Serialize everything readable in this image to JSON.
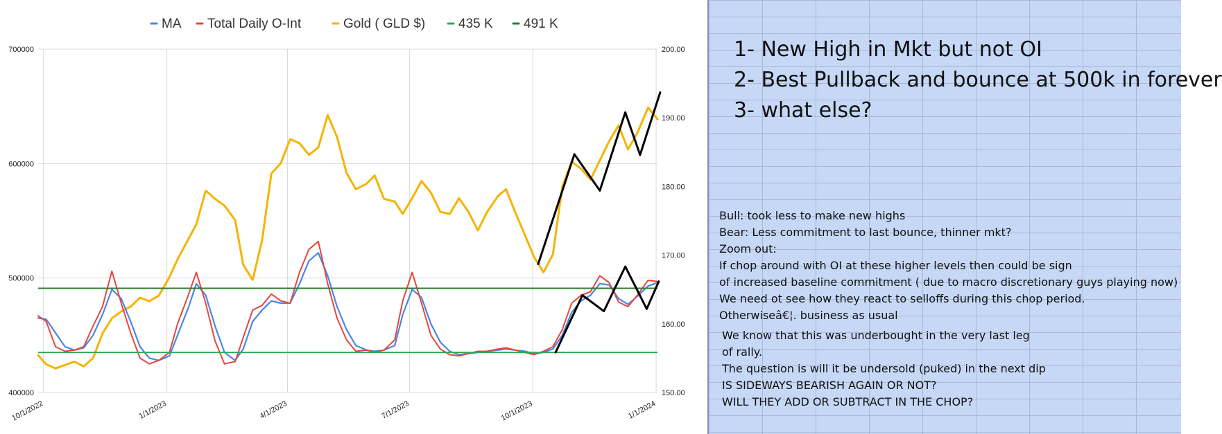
{
  "chart_data": {
    "type": "line",
    "legend": [
      {
        "name": "MA",
        "color": "#4a86e8"
      },
      {
        "name": "Total Daily O-Int",
        "color": "#e8453c"
      },
      {
        "name": "Gold ( GLD $)",
        "color": "#f5b400"
      },
      {
        "name": "435 K",
        "color": "#34a853"
      },
      {
        "name": "491 K",
        "color": "#2e7d32"
      }
    ],
    "legend_position": "top",
    "left_axis": {
      "min": 400000,
      "max": 700000,
      "ticks": [
        "400000",
        "500000",
        "600000",
        "700000"
      ]
    },
    "right_axis": {
      "min": 150,
      "max": 200,
      "ticks": [
        "150.00",
        "160.00",
        "170.00",
        "180.00",
        "190.00",
        "200.00"
      ]
    },
    "x_ticks": [
      "10/1/2022",
      "1/1/2023",
      "4/1/2023",
      "7/1/2023",
      "10/1/2023",
      "1/1/2024"
    ],
    "x_range": [
      "2022-09-27",
      "2024-01-02"
    ],
    "grid": true,
    "hlines": [
      {
        "label": "435 K",
        "value": 435000,
        "color": "#34a853"
      },
      {
        "label": "491 K",
        "value": 491000,
        "color": "#2e7d32"
      }
    ],
    "series": [
      {
        "name": "Gold ( GLD $)",
        "axis": "right",
        "color": "#f5b400",
        "x": [
          "2022-09-27",
          "2022-10-03",
          "2022-10-10",
          "2022-10-17",
          "2022-10-24",
          "2022-10-31",
          "2022-11-07",
          "2022-11-14",
          "2022-11-21",
          "2022-11-28",
          "2022-12-05",
          "2022-12-12",
          "2022-12-19",
          "2022-12-26",
          "2023-01-03",
          "2023-01-09",
          "2023-01-17",
          "2023-01-23",
          "2023-01-30",
          "2023-02-06",
          "2023-02-13",
          "2023-02-21",
          "2023-02-27",
          "2023-03-06",
          "2023-03-13",
          "2023-03-20",
          "2023-03-27",
          "2023-04-03",
          "2023-04-10",
          "2023-04-17",
          "2023-04-24",
          "2023-05-01",
          "2023-05-08",
          "2023-05-15",
          "2023-05-22",
          "2023-05-30",
          "2023-06-05",
          "2023-06-12",
          "2023-06-20",
          "2023-06-26",
          "2023-07-03",
          "2023-07-10",
          "2023-07-17",
          "2023-07-24",
          "2023-07-31",
          "2023-08-07",
          "2023-08-14",
          "2023-08-21",
          "2023-08-28",
          "2023-09-05",
          "2023-09-11",
          "2023-09-18",
          "2023-09-25",
          "2023-10-02",
          "2023-10-09",
          "2023-10-16",
          "2023-10-23",
          "2023-10-30",
          "2023-11-06",
          "2023-11-13",
          "2023-11-20",
          "2023-11-27",
          "2023-12-04",
          "2023-12-11",
          "2023-12-18",
          "2023-12-26",
          "2024-01-02"
        ],
        "values": [
          155.4,
          154.1,
          153.5,
          154.0,
          154.5,
          153.8,
          155.0,
          158.6,
          160.8,
          161.8,
          162.5,
          163.8,
          163.3,
          164.1,
          166.8,
          169.4,
          172.3,
          174.5,
          179.4,
          178.2,
          177.2,
          175.1,
          168.6,
          166.4,
          172.1,
          181.9,
          183.4,
          186.9,
          186.3,
          184.6,
          185.7,
          190.4,
          187.2,
          182.0,
          179.6,
          180.4,
          181.6,
          178.2,
          177.8,
          176.0,
          178.3,
          180.8,
          179.1,
          176.3,
          176.0,
          178.3,
          176.3,
          173.6,
          176.3,
          178.6,
          179.6,
          176.2,
          173.0,
          169.7,
          167.5,
          170.1,
          180.0,
          183.6,
          182.6,
          181.0,
          183.8,
          186.6,
          188.9,
          185.4,
          187.8,
          191.5,
          189.8
        ]
      },
      {
        "name": "Total Daily O-Int",
        "axis": "left",
        "color": "#e8453c",
        "x": [
          "2022-09-27",
          "2022-10-03",
          "2022-10-10",
          "2022-10-17",
          "2022-10-24",
          "2022-10-31",
          "2022-11-07",
          "2022-11-14",
          "2022-11-21",
          "2022-11-28",
          "2022-12-05",
          "2022-12-12",
          "2022-12-19",
          "2022-12-26",
          "2023-01-03",
          "2023-01-09",
          "2023-01-17",
          "2023-01-23",
          "2023-01-30",
          "2023-02-06",
          "2023-02-13",
          "2023-02-21",
          "2023-02-27",
          "2023-03-06",
          "2023-03-13",
          "2023-03-20",
          "2023-03-27",
          "2023-04-03",
          "2023-04-10",
          "2023-04-17",
          "2023-04-24",
          "2023-05-01",
          "2023-05-08",
          "2023-05-15",
          "2023-05-22",
          "2023-05-30",
          "2023-06-05",
          "2023-06-12",
          "2023-06-20",
          "2023-06-26",
          "2023-07-03",
          "2023-07-10",
          "2023-07-17",
          "2023-07-24",
          "2023-07-31",
          "2023-08-07",
          "2023-08-14",
          "2023-08-21",
          "2023-08-28",
          "2023-09-05",
          "2023-09-11",
          "2023-09-18",
          "2023-09-25",
          "2023-10-02",
          "2023-10-09",
          "2023-10-16",
          "2023-10-23",
          "2023-10-30",
          "2023-11-06",
          "2023-11-13",
          "2023-11-20",
          "2023-11-27",
          "2023-12-04",
          "2023-12-11",
          "2023-12-18",
          "2023-12-26",
          "2024-01-02"
        ],
        "values": [
          467000,
          462000,
          440000,
          436000,
          437000,
          440000,
          458000,
          475000,
          506000,
          478000,
          452000,
          430000,
          425000,
          428000,
          435000,
          460000,
          485000,
          505000,
          478000,
          445000,
          425000,
          427000,
          448000,
          472000,
          476000,
          486000,
          480000,
          478000,
          505000,
          525000,
          532000,
          495000,
          465000,
          446000,
          436000,
          437000,
          435000,
          437000,
          446000,
          480000,
          505000,
          478000,
          450000,
          438000,
          433000,
          432000,
          434000,
          436000,
          436000,
          438000,
          439000,
          437000,
          435000,
          433000,
          436000,
          440000,
          455000,
          478000,
          485000,
          488000,
          502000,
          496000,
          479000,
          475000,
          485000,
          498000,
          497000
        ]
      },
      {
        "name": "MA",
        "axis": "left",
        "color": "#4a86e8",
        "x": [
          "2022-09-27",
          "2022-10-03",
          "2022-10-10",
          "2022-10-17",
          "2022-10-24",
          "2022-10-31",
          "2022-11-07",
          "2022-11-14",
          "2022-11-21",
          "2022-11-28",
          "2022-12-05",
          "2022-12-12",
          "2022-12-19",
          "2022-12-26",
          "2023-01-03",
          "2023-01-09",
          "2023-01-17",
          "2023-01-23",
          "2023-01-30",
          "2023-02-06",
          "2023-02-13",
          "2023-02-21",
          "2023-02-27",
          "2023-03-06",
          "2023-03-13",
          "2023-03-20",
          "2023-03-27",
          "2023-04-03",
          "2023-04-10",
          "2023-04-17",
          "2023-04-24",
          "2023-05-01",
          "2023-05-08",
          "2023-05-15",
          "2023-05-22",
          "2023-05-30",
          "2023-06-05",
          "2023-06-12",
          "2023-06-20",
          "2023-06-26",
          "2023-07-03",
          "2023-07-10",
          "2023-07-17",
          "2023-07-24",
          "2023-07-31",
          "2023-08-07",
          "2023-08-14",
          "2023-08-21",
          "2023-08-28",
          "2023-09-05",
          "2023-09-11",
          "2023-09-18",
          "2023-09-25",
          "2023-10-02",
          "2023-10-09",
          "2023-10-16",
          "2023-10-23",
          "2023-10-30",
          "2023-11-06",
          "2023-11-13",
          "2023-11-20",
          "2023-11-27",
          "2023-12-04",
          "2023-12-11",
          "2023-12-18",
          "2023-12-26",
          "2024-01-02"
        ],
        "values": [
          465000,
          464000,
          452000,
          440000,
          437000,
          439000,
          450000,
          468000,
          490000,
          482000,
          462000,
          440000,
          430000,
          428000,
          432000,
          450000,
          474000,
          495000,
          485000,
          458000,
          435000,
          428000,
          438000,
          462000,
          472000,
          480000,
          478000,
          478000,
          495000,
          515000,
          522000,
          502000,
          475000,
          455000,
          441000,
          437000,
          436000,
          437000,
          441000,
          468000,
          490000,
          483000,
          460000,
          444000,
          436000,
          433000,
          434000,
          435000,
          436000,
          437000,
          438000,
          437000,
          436000,
          434000,
          435000,
          438000,
          450000,
          470000,
          480000,
          485000,
          495000,
          494000,
          482000,
          477000,
          484000,
          493000,
          496000
        ]
      }
    ],
    "annotations": [
      {
        "name": "gold-zigzag",
        "color": "#000000",
        "x": [
          "2023-10-05",
          "2023-11-01",
          "2023-11-20",
          "2023-12-09",
          "2023-12-20",
          "2024-01-04"
        ],
        "values": [
          168.7,
          184.7,
          179.4,
          190.8,
          184.6,
          193.7
        ]
      },
      {
        "name": "oi-zigzag",
        "color": "#000000",
        "x": [
          "2023-10-18",
          "2023-11-07",
          "2023-11-23",
          "2023-12-09",
          "2023-12-25",
          "2024-01-03"
        ],
        "values": [
          435000,
          485000,
          471000,
          510000,
          473000,
          497000
        ]
      }
    ]
  },
  "notes": {
    "big": [
      "1- New High in Mkt but not OI",
      "2- Best Pullback and bounce at 500k in forever",
      "3- what else?"
    ],
    "small": [
      "Bull: took less to make new highs",
      "Bear: Less commitment to last bounce, thinner mkt?",
      "Zoom out:",
      "If  chop around with OI at these higher levels then could be sign",
      "of increased baseline commitment ( due to macro discretionary guys playing now)",
      "We need ot see how they react to selloffs during this chop period.",
      "Otherwiseâ€¦. business as usual"
    ],
    "small2": [
      "We know that this was underbought in the very last leg",
      "of rally.",
      "The question is will it be undersold (puked) in the next dip",
      "IS SIDEWAYS BEARISH AGAIN OR NOT?",
      "WILL THEY ADD OR SUBTRACT IN THE CHOP?"
    ]
  }
}
